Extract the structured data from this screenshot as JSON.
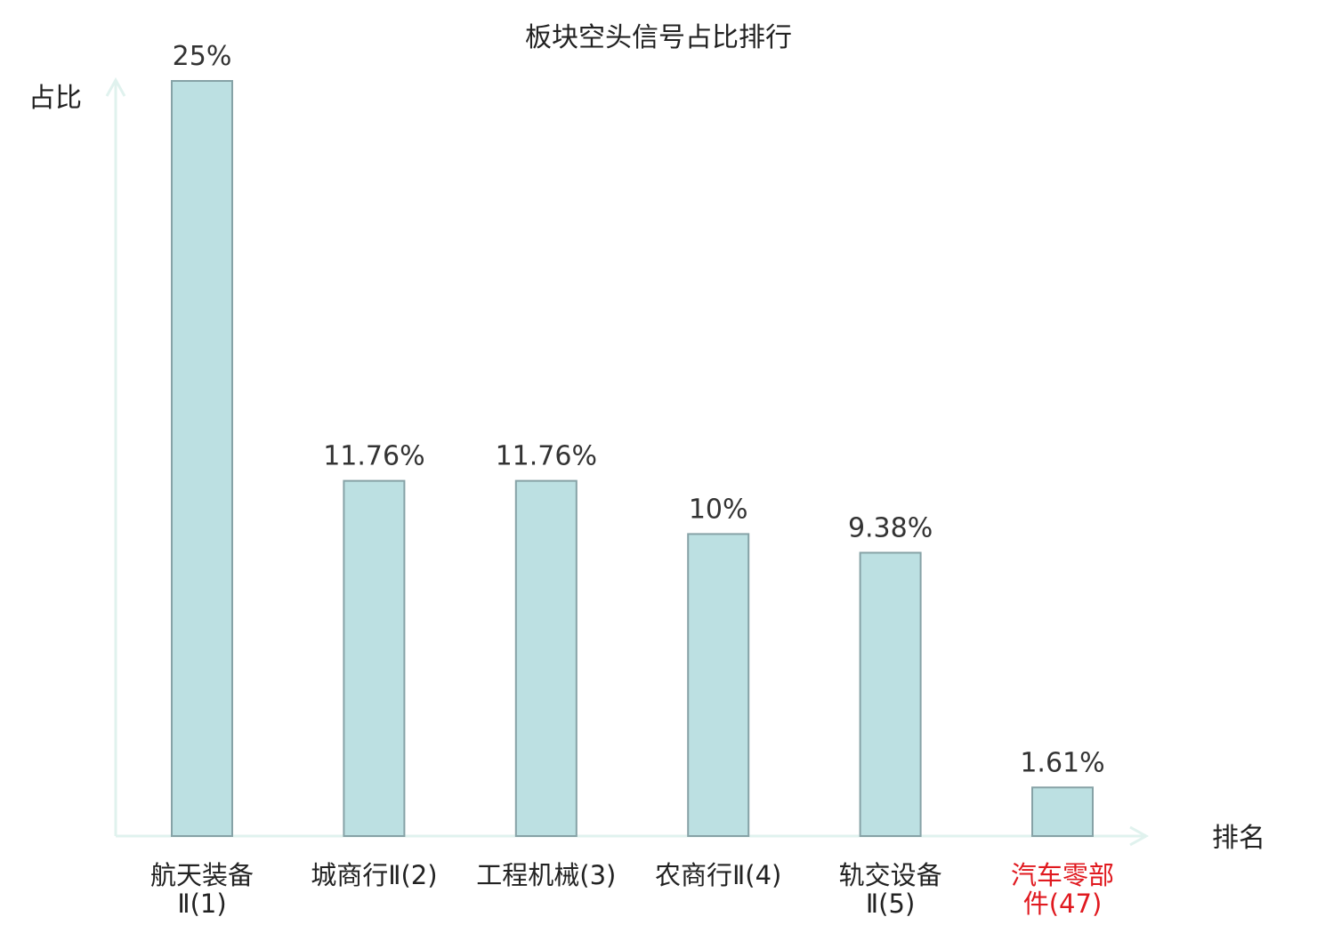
{
  "chart_data": {
    "type": "bar",
    "title": "板块空头信号占比排行",
    "ylabel": "占比",
    "xlabel": "排名",
    "ylim": [
      0,
      25
    ],
    "categories": [
      {
        "lines": [
          "航天装备",
          "Ⅱ(1)"
        ],
        "highlight": false
      },
      {
        "lines": [
          "城商行Ⅱ(2)"
        ],
        "highlight": false
      },
      {
        "lines": [
          "工程机械(3)"
        ],
        "highlight": false
      },
      {
        "lines": [
          "农商行Ⅱ(4)"
        ],
        "highlight": false
      },
      {
        "lines": [
          "轨交设备",
          "Ⅱ(5)"
        ],
        "highlight": false
      },
      {
        "lines": [
          "汽车零部",
          "件(47)"
        ],
        "highlight": true
      }
    ],
    "values": [
      25,
      11.76,
      11.76,
      10,
      9.38,
      1.61
    ],
    "value_labels": [
      "25%",
      "11.76%",
      "11.76%",
      "10%",
      "9.38%",
      "1.61%"
    ]
  },
  "colors": {
    "bar_fill": "#bce0e2",
    "bar_stroke": "#86a2a6",
    "axis": "#e0f2ee",
    "text": "#222222",
    "value_text": "#333333",
    "highlight": "#e0191f"
  }
}
